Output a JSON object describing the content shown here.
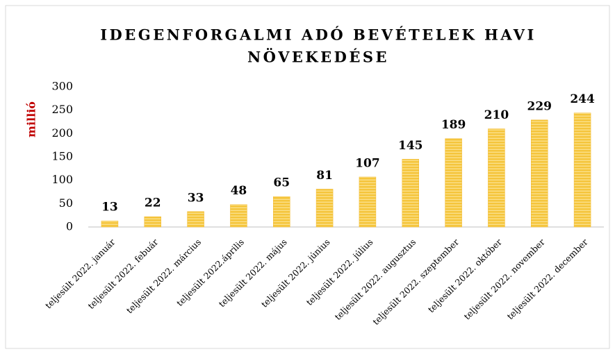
{
  "chart_data": {
    "type": "bar",
    "title": [
      "IDEGENFORGALMI ADÓ BEVÉTELEK HAVI",
      "NÖVEKEDÉSE"
    ],
    "y_label": "millió",
    "categories": [
      "teljesült 2022. január",
      "teljesült 2022. febuár",
      "teljesült 2022. március",
      "teljesült 2022.április",
      "teljesült 2022. május",
      "teljesült 2022. június",
      "teljesült 2022. július",
      "teljesült 2022. augusztus",
      "teljesült 2022. szeptember",
      "teljesült 2022. október",
      "teljesült 2022. november",
      "teljesült 2022. december"
    ],
    "values": [
      13,
      22,
      33,
      48,
      65,
      81,
      107,
      145,
      189,
      210,
      229,
      244
    ],
    "color": "#f2b92e",
    "ylim": [
      0,
      300
    ],
    "yticks": [
      0,
      50,
      100,
      150,
      200,
      250,
      300
    ],
    "grid": false
  }
}
